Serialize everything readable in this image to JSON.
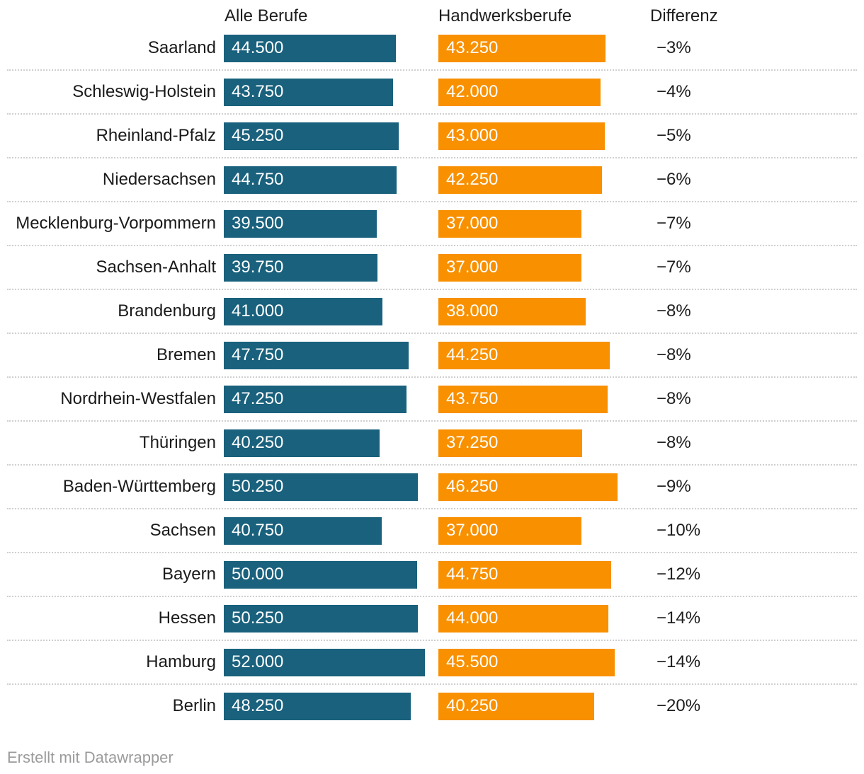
{
  "footer": {
    "attribution": "Erstellt mit Datawrapper"
  },
  "chart_data": {
    "type": "bar",
    "orientation": "horizontal",
    "title": "",
    "column_headers": [
      "Alle Berufe",
      "Handwerksberufe",
      "Differenz"
    ],
    "categories": [
      "Saarland",
      "Schleswig-Holstein",
      "Rheinland-Pfalz",
      "Niedersachsen",
      "Mecklenburg-Vorpommern",
      "Sachsen-Anhalt",
      "Brandenburg",
      "Bremen",
      "Nordrhein-Westfalen",
      "Thüringen",
      "Baden-Württemberg",
      "Sachsen",
      "Bayern",
      "Hessen",
      "Hamburg",
      "Berlin"
    ],
    "series": [
      {
        "name": "Alle Berufe",
        "color": "#19617D",
        "values": [
          44500,
          43750,
          45250,
          44750,
          39500,
          39750,
          41000,
          47750,
          47250,
          40250,
          50250,
          40750,
          50000,
          50250,
          52000,
          48250
        ],
        "labels": [
          "44.500",
          "43.750",
          "45.250",
          "44.750",
          "39.500",
          "39.750",
          "41.000",
          "47.750",
          "47.250",
          "40.250",
          "50.250",
          "40.750",
          "50.000",
          "50.250",
          "52.000",
          "48.250"
        ]
      },
      {
        "name": "Handwerksberufe",
        "color": "#F89000",
        "values": [
          43250,
          42000,
          43000,
          42250,
          37000,
          37000,
          38000,
          44250,
          43750,
          37250,
          46250,
          37000,
          44750,
          44000,
          45500,
          40250
        ],
        "labels": [
          "43.250",
          "42.000",
          "43.000",
          "42.250",
          "37.000",
          "37.000",
          "38.000",
          "44.250",
          "43.750",
          "37.250",
          "46.250",
          "37.000",
          "44.750",
          "44.000",
          "45.500",
          "40.250"
        ]
      }
    ],
    "differenz": [
      "−3%",
      "−4%",
      "−5%",
      "−6%",
      "−7%",
      "−7%",
      "−8%",
      "−8%",
      "−8%",
      "−8%",
      "−9%",
      "−10%",
      "−12%",
      "−14%",
      "−14%",
      "−20%"
    ],
    "value_axis_range": [
      0,
      52000
    ],
    "grid": false,
    "value_labels_inside_bars": true
  }
}
